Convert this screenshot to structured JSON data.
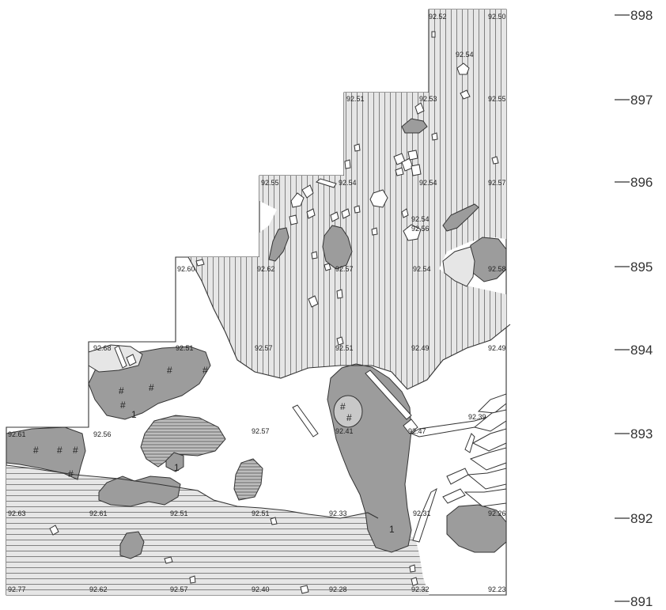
{
  "northing_scale": [
    "898",
    "897",
    "896",
    "895",
    "894",
    "893",
    "892",
    "891"
  ],
  "elevations": [
    "92.52",
    "92.50",
    "92.54",
    "92.51",
    "92.53",
    "92.55",
    "92.55",
    "92.54",
    "92.54",
    "92.57",
    "92.54",
    "92.56",
    "92.60",
    "92.62",
    "92.57",
    "92.54",
    "92.58",
    "92.68",
    "92.51",
    "92.57",
    "92.51",
    "92.49",
    "92.49",
    "92.61",
    "92.56",
    "92.57",
    "92.41",
    "92.47",
    "92.39",
    "92.63",
    "92.61",
    "92.51",
    "92.51",
    "92.33",
    "92.31",
    "92.26",
    "92.77",
    "92.62",
    "92.57",
    "92.40",
    "92.28",
    "92.32",
    "92.23"
  ],
  "layer_markers": [
    "1",
    "1",
    "1"
  ],
  "hash_marks": [
    "#",
    "#",
    "#",
    "#",
    "#",
    "#",
    "#",
    "#",
    "#",
    "#",
    "#"
  ]
}
